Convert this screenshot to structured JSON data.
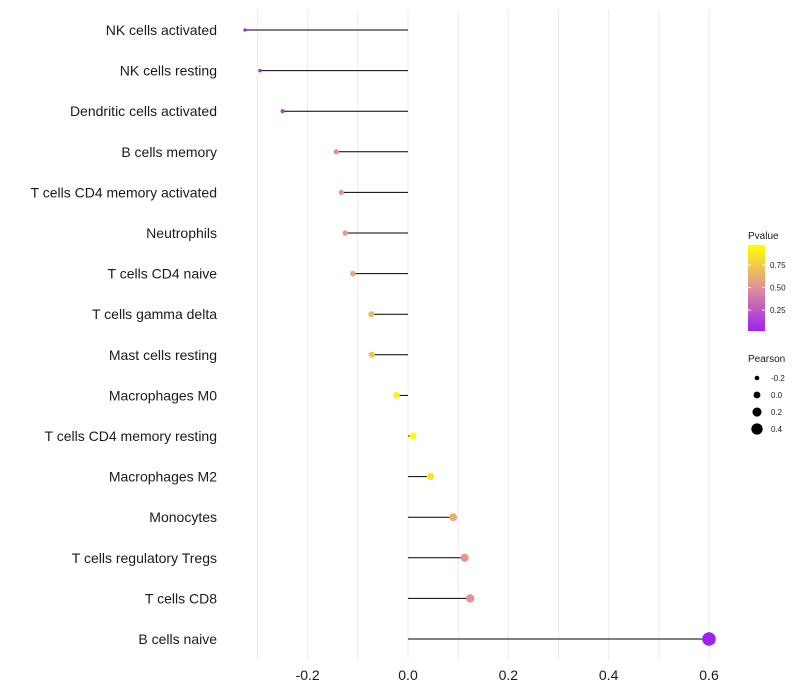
{
  "chart_data": {
    "type": "lollipop",
    "title": "",
    "xlabel": "",
    "ylabel": "",
    "xlim": [
      -0.35,
      0.62
    ],
    "x_ticks": [
      -0.2,
      0.0,
      0.2,
      0.4,
      0.6
    ],
    "x_tick_labels": [
      "-0.2",
      "0.0",
      "0.2",
      "0.4",
      "0.6"
    ],
    "grid": true,
    "categories": [
      "NK cells activated",
      "NK cells resting",
      "Dendritic cells activated",
      "B cells memory",
      "T cells CD4 memory activated",
      "Neutrophils",
      "T cells CD4 naive",
      "T cells gamma delta",
      "Mast cells resting",
      "Macrophages M0",
      "T cells CD4 memory resting",
      "Macrophages M2",
      "Monocytes",
      "T cells regulatory  Tregs",
      "T cells CD8",
      "B cells naive"
    ],
    "pearson": [
      -0.325,
      -0.295,
      -0.25,
      -0.143,
      -0.133,
      -0.125,
      -0.11,
      -0.073,
      -0.072,
      -0.023,
      0.01,
      0.045,
      0.09,
      0.113,
      0.124,
      0.6
    ],
    "pvalue": [
      0.02,
      0.05,
      0.15,
      0.5,
      0.52,
      0.55,
      0.6,
      0.68,
      0.7,
      0.92,
      0.97,
      0.85,
      0.62,
      0.52,
      0.5,
      0.02
    ],
    "legend_pvalue": {
      "title": "Pvalue",
      "ticks": [
        0.75,
        0.5,
        0.25
      ],
      "tick_labels": [
        "0.75",
        "0.50",
        "0.25"
      ],
      "range": [
        0.02,
        0.97
      ],
      "low_color": "#A020F0",
      "mid_color": "#E0909A",
      "high_color": "#FFFF00",
      "position": "right"
    },
    "legend_pearson": {
      "title": "Pearson",
      "values": [
        -0.2,
        0.0,
        0.2,
        0.4
      ],
      "labels": [
        "-0.2",
        "0.0",
        "0.2",
        "0.4"
      ],
      "point_color": "#000000",
      "position": "right"
    },
    "stem_color": "#000000",
    "grid_color": "#ebebeb"
  }
}
